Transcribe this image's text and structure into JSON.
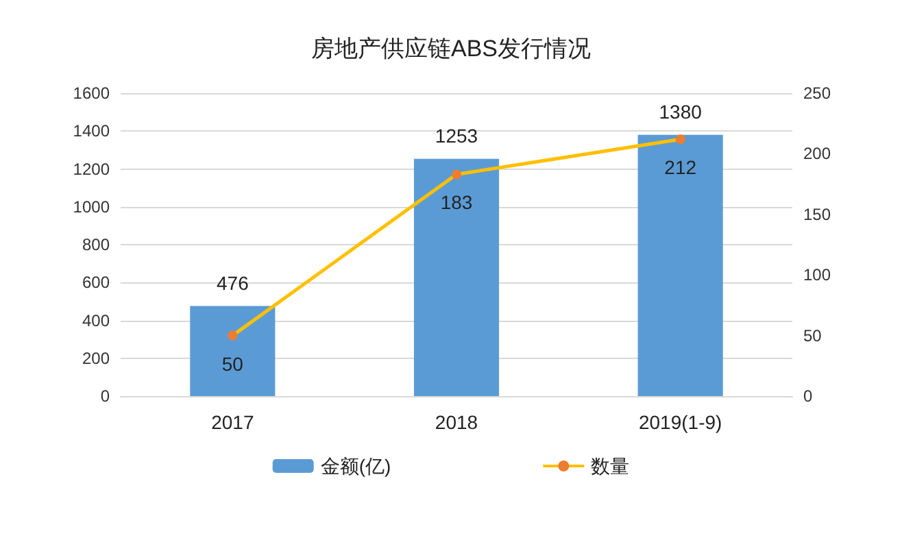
{
  "chart_data": {
    "type": "bar",
    "title": "房地产供应链ABS发行情况",
    "categories": [
      "2017",
      "2018",
      "2019(1-9)"
    ],
    "series": [
      {
        "name": "金额(亿)",
        "color": "#5b9bd5",
        "values": [
          476,
          1253,
          1380
        ]
      },
      {
        "name": "数量",
        "type": "line",
        "axis": "y2",
        "color": "#ffc000",
        "colors": [
          "#ed7d31",
          "#ed7d31",
          "#ed7d31"
        ],
        "marker": "circle",
        "values": [
          50,
          183,
          212
        ]
      }
    ],
    "ylim": [
      0,
      1600
    ],
    "yticks": [
      0,
      200,
      400,
      600,
      800,
      1000,
      1200,
      1400,
      1600
    ],
    "y2lim": [
      0,
      250
    ],
    "y2ticks": [
      0,
      50,
      100,
      150,
      200,
      250
    ],
    "grid": "y",
    "legend": "bottom",
    "data_labels": true
  }
}
